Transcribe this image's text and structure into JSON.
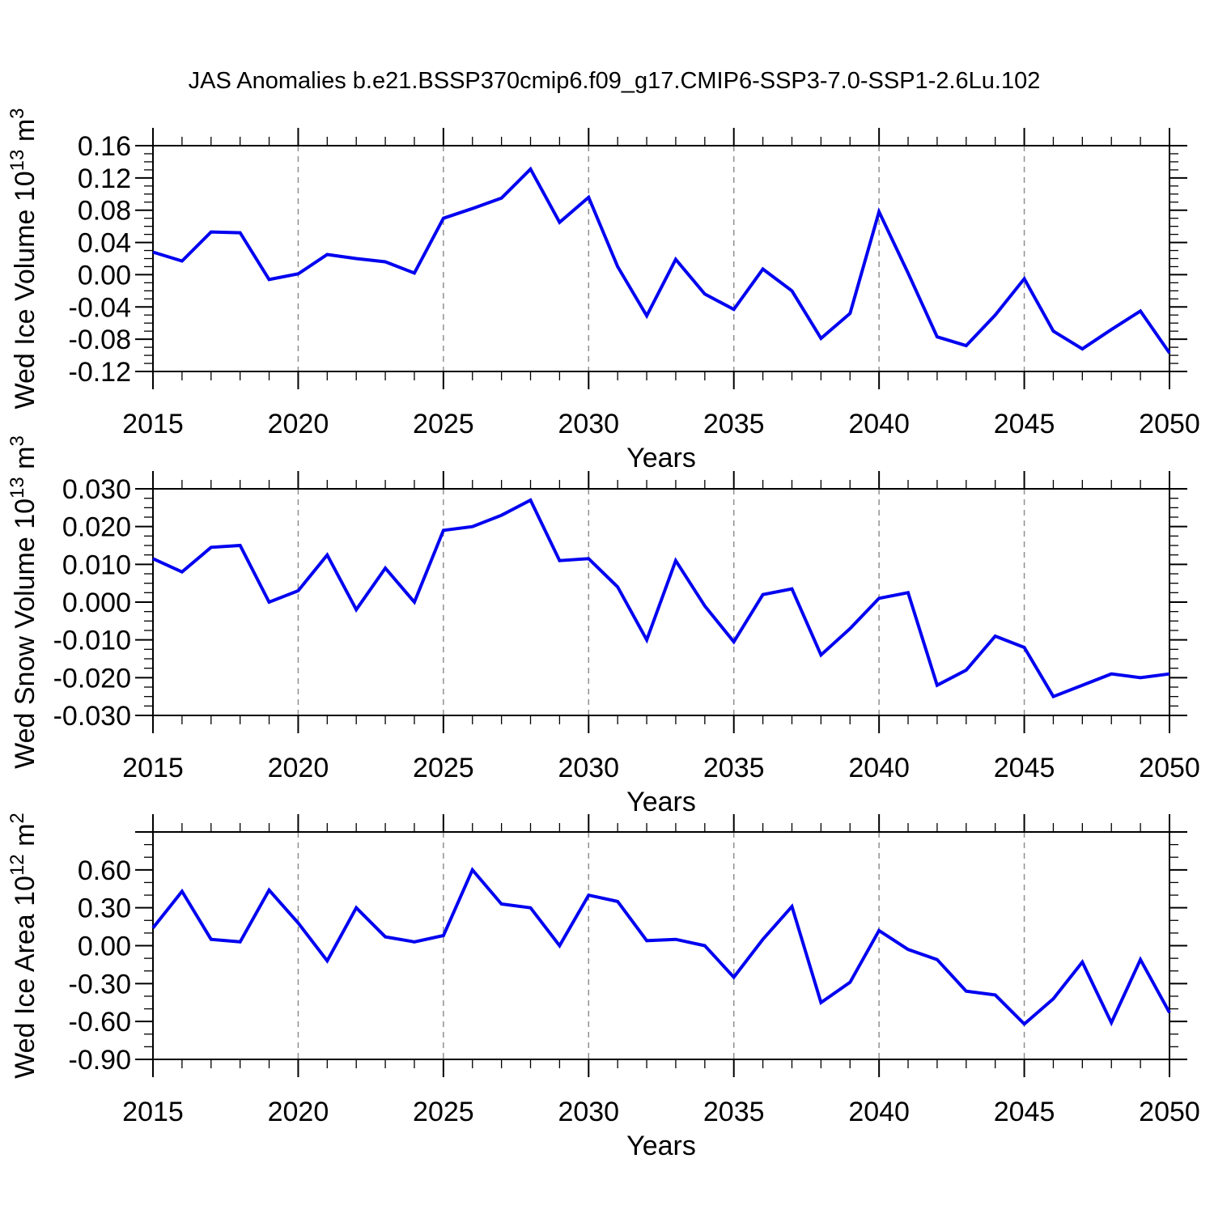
{
  "title": "JAS Anomalies b.e21.BSSP370cmip6.f09_g17.CMIP6-SSP3-7.0-SSP1-2.6Lu.102",
  "colors": {
    "line": "#0000f0",
    "grid": "#909090",
    "axis": "#000000",
    "text": "#000000",
    "background": "#ffffff"
  },
  "chart_data": [
    {
      "type": "line",
      "name": "ice-volume",
      "ylabel": {
        "prefix": "Wed Ice Volume 10",
        "sup1": "13",
        "mid": " m",
        "sup2": "3"
      },
      "xlabel": "Years",
      "x": [
        2015,
        2016,
        2017,
        2018,
        2019,
        2020,
        2021,
        2022,
        2023,
        2024,
        2025,
        2026,
        2027,
        2028,
        2029,
        2030,
        2031,
        2032,
        2033,
        2034,
        2035,
        2036,
        2037,
        2038,
        2039,
        2040,
        2041,
        2042,
        2043,
        2044,
        2045,
        2046,
        2047,
        2048,
        2049,
        2050
      ],
      "values": [
        0.028,
        0.017,
        0.053,
        0.052,
        -0.006,
        0.001,
        0.025,
        0.02,
        0.016,
        0.002,
        0.07,
        0.082,
        0.095,
        0.131,
        0.065,
        0.096,
        0.01,
        -0.051,
        0.019,
        -0.024,
        -0.043,
        0.007,
        -0.02,
        -0.079,
        -0.048,
        0.078,
        0.002,
        -0.077,
        -0.088,
        -0.05,
        -0.005,
        -0.07,
        -0.092,
        -0.068,
        -0.045,
        -0.097
      ],
      "ylim": [
        -0.12,
        0.16
      ],
      "ytick_step": 0.04,
      "yminor_step": 0.01,
      "yticks": [
        {
          "v": 0.16,
          "label": "0.16"
        },
        {
          "v": 0.12,
          "label": "0.12"
        },
        {
          "v": 0.08,
          "label": "0.08"
        },
        {
          "v": 0.04,
          "label": "0.04"
        },
        {
          "v": 0.0,
          "label": "0.00"
        },
        {
          "v": -0.04,
          "label": "-0.04"
        },
        {
          "v": -0.08,
          "label": "-0.08"
        },
        {
          "v": -0.12,
          "label": "-0.12"
        }
      ],
      "x_ticks": [
        {
          "v": 2015,
          "label": "2015"
        },
        {
          "v": 2020,
          "label": "2020"
        },
        {
          "v": 2025,
          "label": "2025"
        },
        {
          "v": 2030,
          "label": "2030"
        },
        {
          "v": 2035,
          "label": "2035"
        },
        {
          "v": 2040,
          "label": "2040"
        },
        {
          "v": 2045,
          "label": "2045"
        },
        {
          "v": 2050,
          "label": "2050"
        }
      ],
      "grid_years": [
        2020,
        2025,
        2030,
        2035,
        2040,
        2045
      ],
      "xlim": [
        2015,
        2050
      ]
    },
    {
      "type": "line",
      "name": "snow-volume",
      "ylabel": {
        "prefix": "Wed Snow Volume 10",
        "sup1": "13",
        "mid": " m",
        "sup2": "3"
      },
      "xlabel": "Years",
      "x": [
        2015,
        2016,
        2017,
        2018,
        2019,
        2020,
        2021,
        2022,
        2023,
        2024,
        2025,
        2026,
        2027,
        2028,
        2029,
        2030,
        2031,
        2032,
        2033,
        2034,
        2035,
        2036,
        2037,
        2038,
        2039,
        2040,
        2041,
        2042,
        2043,
        2044,
        2045,
        2046,
        2047,
        2048,
        2049,
        2050
      ],
      "values": [
        0.0115,
        0.008,
        0.0145,
        0.015,
        0.0,
        0.003,
        0.0125,
        -0.002,
        0.009,
        0.0,
        0.019,
        0.02,
        0.023,
        0.027,
        0.011,
        0.0115,
        0.004,
        -0.01,
        0.011,
        -0.001,
        -0.0105,
        0.002,
        0.0035,
        -0.014,
        -0.007,
        0.001,
        0.0025,
        -0.022,
        -0.018,
        -0.009,
        -0.012,
        -0.025,
        -0.022,
        -0.019,
        -0.02,
        -0.019
      ],
      "ylim": [
        -0.03,
        0.03
      ],
      "ytick_step": 0.01,
      "yminor_step": 0.0025,
      "yticks": [
        {
          "v": 0.03,
          "label": "0.030"
        },
        {
          "v": 0.02,
          "label": "0.020"
        },
        {
          "v": 0.01,
          "label": "0.010"
        },
        {
          "v": 0.0,
          "label": "0.000"
        },
        {
          "v": -0.01,
          "label": "-0.010"
        },
        {
          "v": -0.02,
          "label": "-0.020"
        },
        {
          "v": -0.03,
          "label": "-0.030"
        }
      ],
      "x_ticks": [
        {
          "v": 2015,
          "label": "2015"
        },
        {
          "v": 2020,
          "label": "2020"
        },
        {
          "v": 2025,
          "label": "2025"
        },
        {
          "v": 2030,
          "label": "2030"
        },
        {
          "v": 2035,
          "label": "2035"
        },
        {
          "v": 2040,
          "label": "2040"
        },
        {
          "v": 2045,
          "label": "2045"
        },
        {
          "v": 2050,
          "label": "2050"
        }
      ],
      "grid_years": [
        2020,
        2025,
        2030,
        2035,
        2040,
        2045
      ],
      "xlim": [
        2015,
        2050
      ]
    },
    {
      "type": "line",
      "name": "ice-area",
      "ylabel": {
        "prefix": "Wed Ice Area 10",
        "sup1": "12",
        "mid": " m",
        "sup2": "2"
      },
      "xlabel": "Years",
      "x": [
        2015,
        2016,
        2017,
        2018,
        2019,
        2020,
        2021,
        2022,
        2023,
        2024,
        2025,
        2026,
        2027,
        2028,
        2029,
        2030,
        2031,
        2032,
        2033,
        2034,
        2035,
        2036,
        2037,
        2038,
        2039,
        2040,
        2041,
        2042,
        2043,
        2044,
        2045,
        2046,
        2047,
        2048,
        2049,
        2050
      ],
      "values": [
        0.14,
        0.43,
        0.05,
        0.03,
        0.44,
        0.18,
        -0.12,
        0.3,
        0.07,
        0.03,
        0.08,
        0.6,
        0.33,
        0.3,
        0.0,
        0.4,
        0.35,
        0.04,
        0.05,
        0.0,
        -0.25,
        0.05,
        0.31,
        -0.45,
        -0.29,
        0.12,
        -0.03,
        -0.11,
        -0.36,
        -0.39,
        -0.62,
        -0.42,
        -0.13,
        -0.61,
        -0.11,
        -0.53
      ],
      "ylim": [
        -0.9,
        0.9
      ],
      "ytick_step": 0.3,
      "yminor_step": 0.1,
      "yticks": [
        {
          "v": 0.9,
          "label": ""
        },
        {
          "v": 0.6,
          "label": "0.60"
        },
        {
          "v": 0.3,
          "label": "0.30"
        },
        {
          "v": 0.0,
          "label": "0.00"
        },
        {
          "v": -0.3,
          "label": "-0.30"
        },
        {
          "v": -0.6,
          "label": "-0.60"
        },
        {
          "v": -0.9,
          "label": "-0.90"
        }
      ],
      "x_ticks": [
        {
          "v": 2015,
          "label": "2015"
        },
        {
          "v": 2020,
          "label": "2020"
        },
        {
          "v": 2025,
          "label": "2025"
        },
        {
          "v": 2030,
          "label": "2030"
        },
        {
          "v": 2035,
          "label": "2035"
        },
        {
          "v": 2040,
          "label": "2040"
        },
        {
          "v": 2045,
          "label": "2045"
        },
        {
          "v": 2050,
          "label": "2050"
        }
      ],
      "grid_years": [
        2020,
        2025,
        2030,
        2035,
        2040,
        2045
      ],
      "xlim": [
        2015,
        2050
      ]
    }
  ]
}
